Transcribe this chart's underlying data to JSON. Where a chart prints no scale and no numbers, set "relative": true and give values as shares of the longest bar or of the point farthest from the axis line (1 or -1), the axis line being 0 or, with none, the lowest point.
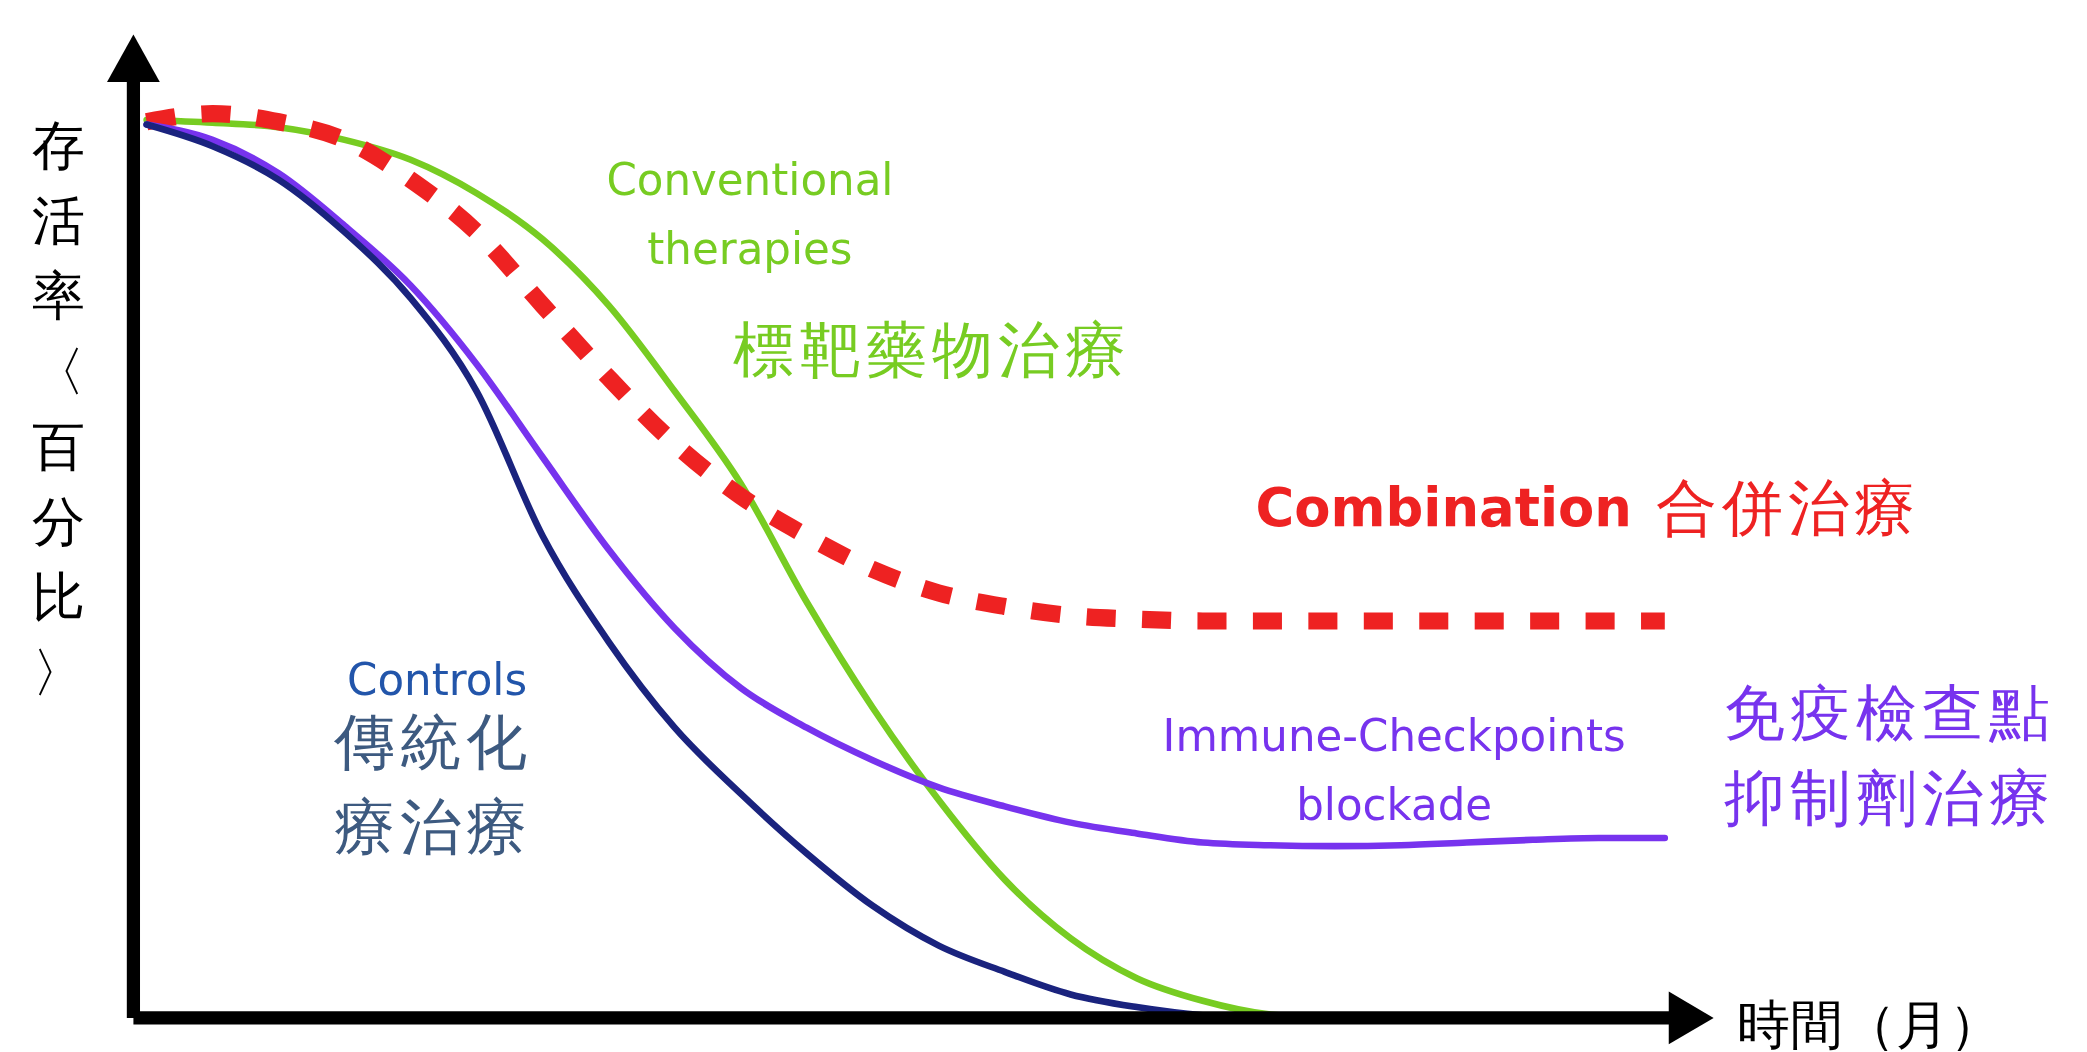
{
  "chart_data": {
    "type": "line",
    "relative": true,
    "xlabel": "時間（月）",
    "ylabel": "存活率〈百分比〉",
    "legend": false,
    "grid": false,
    "categories": [
      null,
      null,
      null,
      null,
      null,
      null,
      null,
      null,
      null,
      null,
      null,
      null,
      null,
      null,
      null,
      null,
      null,
      null,
      null,
      null,
      null,
      null,
      null,
      null
    ],
    "series": [
      {
        "name": "Conventional therapies",
        "color": "#77cc22",
        "line_style": "solid",
        "values": [
          0.993,
          0.99,
          0.985,
          0.971,
          0.949,
          0.912,
          0.861,
          0.788,
          0.693,
          0.591,
          0.46,
          0.343,
          0.241,
          0.153,
          0.088,
          0.044,
          0.019,
          0.004,
          0,
          null,
          null,
          null,
          null,
          null
        ]
      },
      {
        "name": "Combination",
        "color": "#ee2222",
        "line_style": "dashed",
        "values": [
          0.991,
          1,
          0.991,
          0.971,
          0.927,
          0.869,
          0.788,
          0.708,
          0.635,
          0.577,
          0.533,
          0.496,
          0.47,
          0.455,
          0.445,
          0.441,
          0.439,
          0.439,
          0.439,
          0.439,
          0.439,
          0.439,
          0.439,
          0.439
        ]
      },
      {
        "name": "Immune-Checkpoints blockade",
        "color": "#7733ee",
        "line_style": "solid",
        "values": [
          0.988,
          0.971,
          0.934,
          0.876,
          0.81,
          0.723,
          0.62,
          0.518,
          0.431,
          0.365,
          0.321,
          0.285,
          0.255,
          0.234,
          0.216,
          0.204,
          0.194,
          0.191,
          0.19,
          0.191,
          0.194,
          0.197,
          0.199,
          0.199
        ]
      },
      {
        "name": "Controls",
        "color": "#1a237e",
        "line_style": "solid",
        "values": [
          0.988,
          0.964,
          0.927,
          0.869,
          0.796,
          0.693,
          0.533,
          0.416,
          0.321,
          0.248,
          0.182,
          0.124,
          0.08,
          0.051,
          0.026,
          0.012,
          0.003,
          0,
          null,
          null,
          null,
          null,
          null,
          null
        ]
      }
    ],
    "annotations": [
      "標靶藥物治療",
      "合併治療",
      "免疫檢查點抑制劑治療",
      "傳統化療治療"
    ]
  }
}
